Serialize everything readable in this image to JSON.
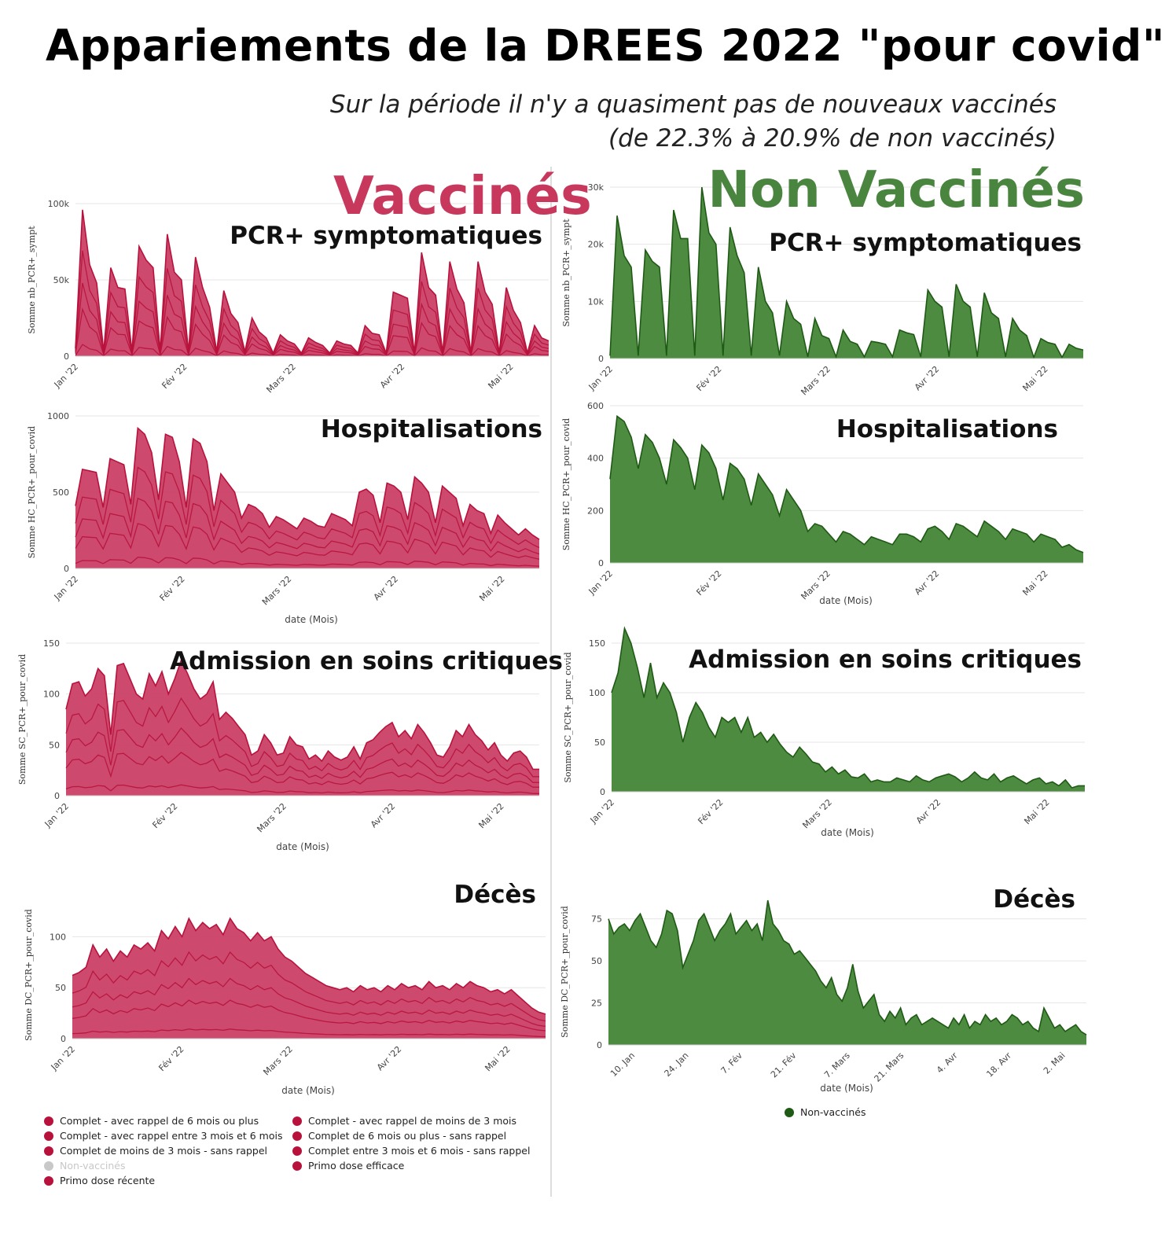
{
  "title": "Appariements de la DREES 2022 \"pour covid\"",
  "subtitle_line1": "Sur la période il n'y a quasiment pas de nouveaux vaccinés",
  "subtitle_line2": "(de 22.3% à 20.9% de non vaccinés)",
  "vacc_heading": "Vaccinés",
  "nonvacc_heading": "Non Vaccinés",
  "colors": {
    "vacc_fill": "#c93b62",
    "vacc_line": "#b8123c",
    "nonvacc_fill": "#4d8b40",
    "nonvacc_line": "#1f5a15",
    "grid": "#e6e6e6",
    "legend_off": "#c8c8c8"
  },
  "legend_vacc": [
    {
      "label": "Complet - avec rappel de 6 mois ou plus",
      "color": "#b8123c"
    },
    {
      "label": "Complet - avec rappel entre 3 mois et 6 mois",
      "color": "#b8123c"
    },
    {
      "label": "Complet de moins de 3 mois - sans rappel",
      "color": "#b8123c"
    },
    {
      "label": "Non-vaccinés",
      "color": "#c8c8c8"
    },
    {
      "label": "Primo dose récente",
      "color": "#b8123c"
    },
    {
      "label": "Complet - avec rappel de moins de 3 mois",
      "color": "#b8123c"
    },
    {
      "label": "Complet de 6 mois ou plus - sans rappel",
      "color": "#b8123c"
    },
    {
      "label": "Complet entre 3 mois et 6 mois - sans rappel",
      "color": "#b8123c"
    },
    {
      "label": "Primo dose efficace",
      "color": "#b8123c"
    }
  ],
  "legend_nonvacc": {
    "label": "Non-vaccinés",
    "color": "#1f5a15"
  },
  "chart_data": [
    {
      "id": "v_pcr",
      "type": "area",
      "group": "vacc",
      "title": "PCR+ symptomatiques",
      "ylabel": "Somme nb_PCR+_sympt",
      "xlabel": "",
      "yticks": [
        "0",
        "50k",
        "100k"
      ],
      "ylim": [
        0,
        100000
      ],
      "xticks": [
        "Jan '22",
        "Fév '22",
        "Mars '22",
        "Avr '22",
        "Mai '22"
      ],
      "x_start": "2022-01-01",
      "x_end": "2022-05-09",
      "series": [
        {
          "values": [
            5000,
            96000,
            60000,
            48000,
            3000,
            58000,
            45000,
            44000,
            3000,
            72000,
            63000,
            58000,
            3000,
            80000,
            55000,
            50000,
            3000,
            65000,
            45000,
            32000,
            3000,
            43000,
            28000,
            22000,
            3000,
            25000,
            16000,
            12000,
            2000,
            14000,
            10000,
            8000,
            2000,
            12000,
            9000,
            7000,
            2000,
            10000,
            8000,
            7000,
            2000,
            20000,
            15000,
            14000,
            2000,
            42000,
            40000,
            38000,
            2000,
            68000,
            45000,
            40000,
            2000,
            62000,
            44000,
            35000,
            2000,
            62000,
            42000,
            34000,
            2000,
            45000,
            30000,
            22000,
            2000,
            20000,
            12000,
            10000
          ]
        }
      ]
    },
    {
      "id": "v_hosp",
      "type": "area",
      "group": "vacc",
      "title": "Hospitalisations",
      "ylabel": "Somme HC_PCR+_pour_covid",
      "xlabel": "date (Mois)",
      "yticks": [
        "0",
        "500",
        "1000"
      ],
      "ylim": [
        0,
        1000
      ],
      "xticks": [
        "Jan '22",
        "Fév '22",
        "Mars '22",
        "Avr '22",
        "Mai '22"
      ],
      "x_start": "2022-01-01",
      "x_end": "2022-05-09",
      "series": [
        {
          "values": [
            410,
            650,
            640,
            630,
            400,
            720,
            700,
            680,
            420,
            920,
            880,
            760,
            450,
            880,
            860,
            700,
            400,
            850,
            820,
            700,
            380,
            620,
            560,
            500,
            330,
            420,
            400,
            360,
            270,
            340,
            320,
            290,
            260,
            330,
            310,
            280,
            270,
            360,
            340,
            320,
            280,
            500,
            520,
            480,
            300,
            560,
            540,
            500,
            320,
            600,
            560,
            500,
            300,
            540,
            500,
            460,
            280,
            420,
            380,
            360,
            230,
            350,
            300,
            260,
            220,
            260,
            220,
            190
          ]
        }
      ]
    },
    {
      "id": "v_sc",
      "type": "area",
      "group": "vacc",
      "title": "Admission en soins critiques",
      "ylabel": "Somme SC_PCR+_pour_covid",
      "xlabel": "date (Mois)",
      "yticks": [
        "0",
        "50",
        "100",
        "150"
      ],
      "ylim": [
        0,
        150
      ],
      "xticks": [
        "Jan '22",
        "Fév '22",
        "Mars '22",
        "Avr '22",
        "Mai '22"
      ],
      "x_start": "2022-01-01",
      "x_end": "2022-05-09",
      "series": [
        {
          "values": [
            85,
            110,
            112,
            98,
            105,
            125,
            118,
            60,
            128,
            130,
            115,
            100,
            95,
            120,
            108,
            122,
            100,
            115,
            133,
            120,
            105,
            95,
            100,
            112,
            75,
            82,
            76,
            68,
            60,
            40,
            44,
            60,
            52,
            40,
            42,
            58,
            50,
            48,
            36,
            40,
            34,
            44,
            38,
            35,
            38,
            48,
            36,
            52,
            55,
            62,
            68,
            72,
            58,
            64,
            56,
            70,
            62,
            52,
            40,
            38,
            48,
            64,
            58,
            70,
            60,
            54,
            45,
            52,
            40,
            34,
            42,
            44,
            38,
            26,
            26
          ]
        }
      ]
    },
    {
      "id": "v_dc",
      "type": "area",
      "group": "vacc",
      "title": "Décès",
      "ylabel": "Somme DC_PCR+_pour_covid",
      "xlabel": "date (Mois)",
      "yticks": [
        "0",
        "50",
        "100"
      ],
      "ylim": [
        0,
        125
      ],
      "xticks": [
        "Jan '22",
        "Fév '22",
        "Mars '22",
        "Avr '22",
        "Mai '22"
      ],
      "x_start": "2022-01-01",
      "x_end": "2022-05-09",
      "series": [
        {
          "values": [
            62,
            65,
            70,
            92,
            80,
            88,
            76,
            86,
            80,
            92,
            88,
            94,
            86,
            106,
            98,
            110,
            100,
            118,
            106,
            114,
            108,
            112,
            102,
            118,
            108,
            104,
            96,
            104,
            96,
            100,
            88,
            80,
            76,
            70,
            64,
            60,
            56,
            52,
            50,
            48,
            50,
            46,
            52,
            48,
            50,
            46,
            52,
            48,
            54,
            50,
            52,
            48,
            56,
            50,
            52,
            48,
            54,
            50,
            56,
            52,
            50,
            46,
            48,
            44,
            48,
            42,
            36,
            30,
            26,
            24
          ]
        }
      ]
    },
    {
      "id": "n_pcr",
      "type": "area",
      "group": "nonvacc",
      "title": "PCR+ symptomatiques",
      "ylabel": "Somme nb_PCR+_sympt",
      "xlabel": "",
      "yticks": [
        "0",
        "10k",
        "20k",
        "30k"
      ],
      "ylim": [
        0,
        30000
      ],
      "xticks": [
        "Jan '22",
        "Fév '22",
        "Mars '22",
        "Avr '22",
        "Mai '22"
      ],
      "x_start": "2022-01-01",
      "x_end": "2022-05-09",
      "series": [
        {
          "values": [
            500,
            25000,
            18000,
            16000,
            500,
            19000,
            17000,
            16000,
            500,
            26000,
            21000,
            21000,
            500,
            30000,
            22000,
            20000,
            500,
            23000,
            18000,
            15000,
            500,
            16000,
            10000,
            8000,
            500,
            10000,
            7000,
            6000,
            300,
            7000,
            4000,
            3500,
            300,
            5000,
            3000,
            2500,
            300,
            3000,
            2800,
            2500,
            300,
            5000,
            4500,
            4200,
            300,
            12000,
            10000,
            9000,
            300,
            13000,
            10000,
            9000,
            300,
            11500,
            8000,
            7000,
            300,
            7000,
            5000,
            4000,
            200,
            3500,
            2800,
            2500,
            200,
            2500,
            1800,
            1500
          ]
        }
      ]
    },
    {
      "id": "n_hosp",
      "type": "area",
      "group": "nonvacc",
      "title": "Hospitalisations",
      "ylabel": "Somme HC_PCR+_pour_covid",
      "xlabel": "date (Mois)",
      "yticks": [
        "0",
        "200",
        "400",
        "600"
      ],
      "ylim": [
        0,
        600
      ],
      "xticks": [
        "Jan '22",
        "Fév '22",
        "Mars '22",
        "Avr '22",
        "Mai '22"
      ],
      "x_start": "2022-01-01",
      "x_end": "2022-05-09",
      "series": [
        {
          "values": [
            320,
            560,
            540,
            480,
            360,
            490,
            460,
            400,
            300,
            470,
            440,
            400,
            280,
            450,
            420,
            360,
            240,
            380,
            360,
            320,
            220,
            340,
            300,
            260,
            180,
            280,
            240,
            200,
            120,
            150,
            140,
            110,
            80,
            120,
            110,
            90,
            70,
            100,
            90,
            80,
            70,
            110,
            110,
            100,
            80,
            130,
            140,
            120,
            90,
            150,
            140,
            120,
            100,
            160,
            140,
            120,
            90,
            130,
            120,
            110,
            80,
            110,
            100,
            90,
            60,
            70,
            50,
            40
          ]
        }
      ]
    },
    {
      "id": "n_sc",
      "type": "area",
      "group": "nonvacc",
      "title": "Admission en soins critiques",
      "ylabel": "Somme SC_PCR+_pour_covid",
      "xlabel": "date (Mois)",
      "yticks": [
        "0",
        "50",
        "100",
        "150"
      ],
      "ylim": [
        0,
        150
      ],
      "xticks": [
        "Jan '22",
        "Fév '22",
        "Mars '22",
        "Avr '22",
        "Mai '22"
      ],
      "x_start": "2022-01-01",
      "x_end": "2022-05-09",
      "series": [
        {
          "values": [
            100,
            120,
            165,
            150,
            125,
            95,
            130,
            95,
            110,
            100,
            80,
            50,
            75,
            90,
            80,
            65,
            55,
            75,
            70,
            75,
            60,
            75,
            55,
            60,
            50,
            58,
            48,
            40,
            35,
            45,
            38,
            30,
            28,
            20,
            25,
            18,
            22,
            15,
            14,
            18,
            10,
            12,
            10,
            10,
            14,
            12,
            10,
            16,
            12,
            10,
            14,
            16,
            18,
            15,
            10,
            14,
            20,
            14,
            12,
            18,
            10,
            14,
            16,
            12,
            8,
            12,
            14,
            8,
            10,
            6,
            12,
            4,
            6,
            6
          ]
        }
      ]
    },
    {
      "id": "n_dc",
      "type": "area",
      "group": "nonvacc",
      "title": "Décès",
      "ylabel": "Somme DC_PCR+_pour_covid",
      "xlabel": "date (Mois)",
      "yticks": [
        "0",
        "25",
        "50",
        "75"
      ],
      "ylim": [
        0,
        87
      ],
      "xticks": [
        "10. Jan",
        "24. Jan",
        "7. Fév",
        "21. Fév",
        "7. Mars",
        "21. Mars",
        "4. Avr",
        "18. Avr",
        "2. Mai"
      ],
      "x_start": "2022-01-01",
      "x_end": "2022-05-09",
      "series": [
        {
          "values": [
            75,
            66,
            70,
            72,
            68,
            74,
            78,
            70,
            62,
            58,
            66,
            80,
            78,
            68,
            46,
            54,
            62,
            74,
            78,
            70,
            62,
            68,
            72,
            78,
            66,
            70,
            74,
            68,
            72,
            62,
            86,
            72,
            68,
            62,
            60,
            54,
            56,
            52,
            48,
            44,
            38,
            34,
            40,
            30,
            26,
            34,
            48,
            32,
            22,
            26,
            30,
            18,
            14,
            20,
            16,
            22,
            12,
            16,
            18,
            12,
            14,
            16,
            14,
            12,
            10,
            16,
            12,
            18,
            10,
            14,
            12,
            18,
            14,
            16,
            12,
            14,
            18,
            16,
            12,
            14,
            10,
            8,
            22,
            16,
            10,
            12,
            8,
            10,
            12,
            8,
            6
          ]
        }
      ]
    }
  ]
}
